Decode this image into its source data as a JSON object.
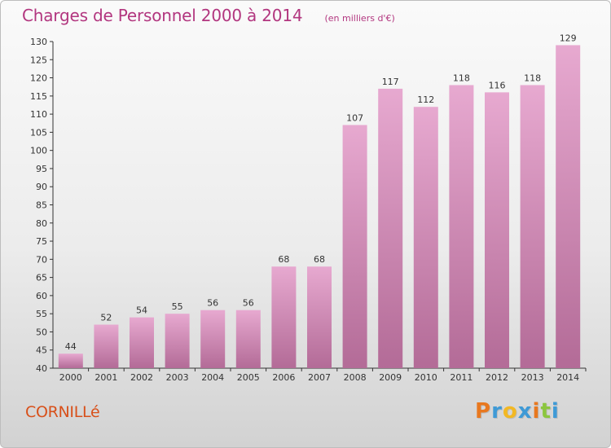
{
  "header": {
    "title": "Charges de Personnel 2000 à 2014",
    "unit": "(en milliers d'€)"
  },
  "footer": {
    "commune": "CORNILLé",
    "brand_letters": [
      "P",
      "r",
      "o",
      "x",
      "i",
      "t",
      "i"
    ],
    "brand_colors": [
      "#e8781f",
      "#3f9ad6",
      "#f2b824",
      "#3f9ad6",
      "#e8781f",
      "#8cc63f",
      "#3f9ad6"
    ]
  },
  "colors": {
    "title": "#b2367f",
    "commune": "#d8501a",
    "bar_top": "#e7a9d0",
    "bar_bottom": "#b36b97",
    "axis": "#333333"
  },
  "chart_data": {
    "type": "bar",
    "categories": [
      "2000",
      "2001",
      "2002",
      "2003",
      "2004",
      "2005",
      "2006",
      "2007",
      "2008",
      "2009",
      "2010",
      "2011",
      "2012",
      "2013",
      "2014"
    ],
    "values": [
      44,
      52,
      54,
      55,
      56,
      56,
      68,
      68,
      107,
      117,
      112,
      118,
      116,
      118,
      129
    ],
    "ylim": [
      40,
      130
    ],
    "yticks": [
      40,
      45,
      50,
      55,
      60,
      65,
      70,
      75,
      80,
      85,
      90,
      95,
      100,
      105,
      110,
      115,
      120,
      125,
      130
    ],
    "grid": false
  }
}
